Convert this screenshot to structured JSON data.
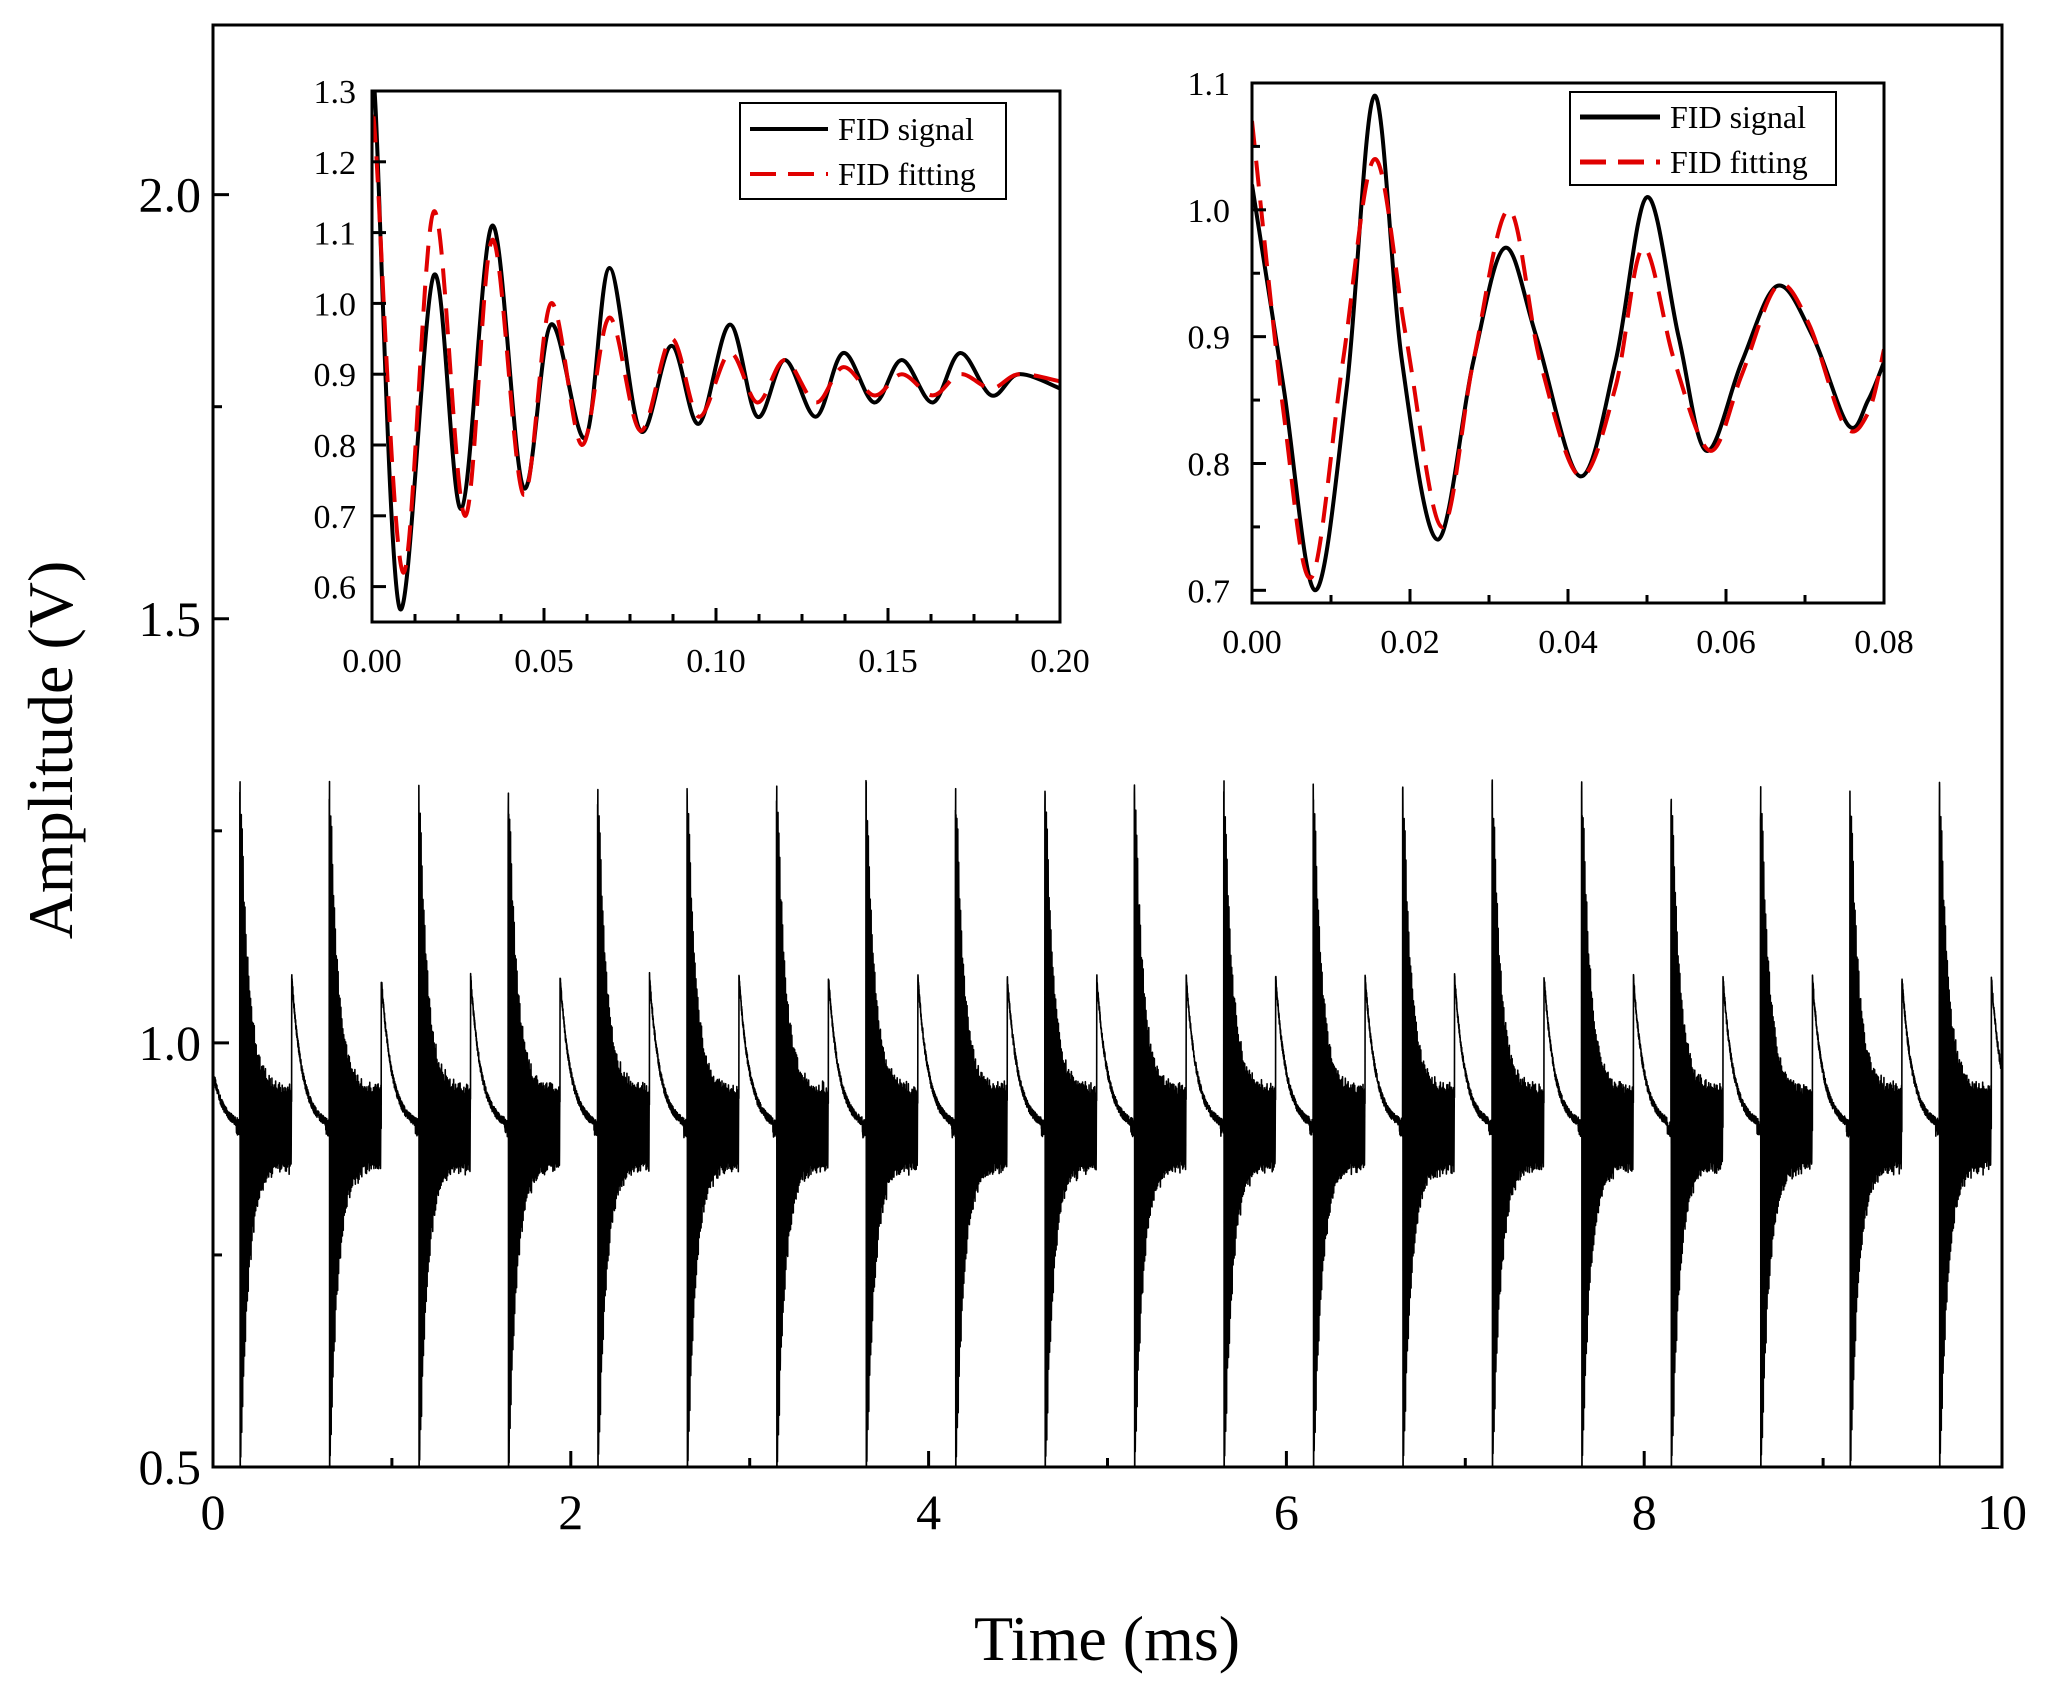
{
  "chart_data": [
    {
      "type": "line",
      "role": "main",
      "title": "",
      "xlabel": "Time (ms)",
      "ylabel": "Amplitude (V)",
      "xlim": [
        0,
        10
      ],
      "ylim": [
        0.5,
        2.2
      ],
      "xticks": [
        "0",
        "2",
        "4",
        "6",
        "8",
        "10"
      ],
      "yticks": [
        "0.5",
        "1.0",
        "1.5",
        "2.0"
      ],
      "pulse_period_ms": 0.5,
      "pulse_times_ms": [
        0.15,
        0.65,
        1.15,
        1.65,
        2.15,
        2.65,
        3.15,
        3.65,
        4.15,
        4.65,
        5.15,
        5.65,
        6.15,
        6.65,
        7.15,
        7.65,
        8.15,
        8.65,
        9.15,
        9.65
      ],
      "series": [
        {
          "name": "FID signal",
          "color": "#000000",
          "baseline": 0.9,
          "spike_max": 1.31,
          "spike_min": 0.5,
          "pre_pulse_peak": 1.11
        }
      ]
    },
    {
      "type": "line",
      "role": "inset-left",
      "xlim": [
        0,
        0.2
      ],
      "ylim": [
        0.55,
        1.3
      ],
      "xticks": [
        "0.00",
        "0.05",
        "0.10",
        "0.15",
        "0.20"
      ],
      "yticks": [
        "0.6",
        "0.7",
        "0.8",
        "0.9",
        "1.0",
        "1.1",
        "1.2",
        "1.3"
      ],
      "legend": [
        "FID signal",
        "FID fitting"
      ],
      "legend_position": "top-right",
      "series": [
        {
          "name": "FID signal",
          "color": "#000000",
          "x": [
            0.0,
            0.001,
            0.008,
            0.018,
            0.026,
            0.035,
            0.044,
            0.052,
            0.062,
            0.069,
            0.078,
            0.087,
            0.095,
            0.104,
            0.112,
            0.12,
            0.129,
            0.137,
            0.146,
            0.154,
            0.163,
            0.171,
            0.18,
            0.188,
            0.2
          ],
          "y": [
            1.28,
            1.28,
            0.57,
            1.04,
            0.71,
            1.11,
            0.74,
            0.97,
            0.81,
            1.05,
            0.82,
            0.94,
            0.83,
            0.97,
            0.84,
            0.92,
            0.84,
            0.93,
            0.86,
            0.92,
            0.86,
            0.93,
            0.87,
            0.9,
            0.88
          ]
        },
        {
          "name": "FID fitting",
          "color": "#e00000",
          "x": [
            0.0,
            0.001,
            0.009,
            0.018,
            0.027,
            0.035,
            0.044,
            0.052,
            0.061,
            0.069,
            0.078,
            0.087,
            0.095,
            0.104,
            0.112,
            0.12,
            0.129,
            0.137,
            0.146,
            0.154,
            0.163,
            0.171,
            0.18,
            0.188,
            0.2
          ],
          "y": [
            1.23,
            1.23,
            0.62,
            1.13,
            0.7,
            1.09,
            0.73,
            1.0,
            0.8,
            0.98,
            0.82,
            0.95,
            0.84,
            0.93,
            0.86,
            0.92,
            0.86,
            0.91,
            0.87,
            0.9,
            0.87,
            0.9,
            0.88,
            0.9,
            0.89
          ]
        }
      ]
    },
    {
      "type": "line",
      "role": "inset-right",
      "xlim": [
        0,
        0.08
      ],
      "ylim": [
        0.69,
        1.1
      ],
      "xticks": [
        "0.00",
        "0.02",
        "0.04",
        "0.06",
        "0.08"
      ],
      "yticks": [
        "0.7",
        "0.8",
        "0.9",
        "1.0",
        "1.1"
      ],
      "legend": [
        "FID signal",
        "FID fitting"
      ],
      "legend_position": "top-right",
      "series": [
        {
          "name": "FID signal",
          "color": "#000000",
          "x": [
            0.0,
            0.004,
            0.008,
            0.012,
            0.0155,
            0.019,
            0.0235,
            0.028,
            0.032,
            0.036,
            0.0415,
            0.046,
            0.05,
            0.054,
            0.0575,
            0.062,
            0.0665,
            0.071,
            0.0755,
            0.078,
            0.08
          ],
          "y": [
            1.02,
            0.86,
            0.7,
            0.86,
            1.09,
            0.88,
            0.74,
            0.88,
            0.97,
            0.9,
            0.79,
            0.88,
            1.01,
            0.9,
            0.81,
            0.88,
            0.94,
            0.9,
            0.83,
            0.85,
            0.88
          ]
        },
        {
          "name": "FID fitting",
          "color": "#e00000",
          "x": [
            0.0,
            0.004,
            0.0075,
            0.0115,
            0.0155,
            0.0195,
            0.024,
            0.028,
            0.0325,
            0.0365,
            0.0415,
            0.046,
            0.0495,
            0.0535,
            0.058,
            0.062,
            0.0665,
            0.0705,
            0.075,
            0.078,
            0.08
          ],
          "y": [
            1.07,
            0.84,
            0.71,
            0.88,
            1.04,
            0.9,
            0.75,
            0.88,
            1.0,
            0.88,
            0.79,
            0.86,
            0.97,
            0.88,
            0.81,
            0.87,
            0.94,
            0.91,
            0.83,
            0.84,
            0.89
          ]
        }
      ]
    }
  ]
}
